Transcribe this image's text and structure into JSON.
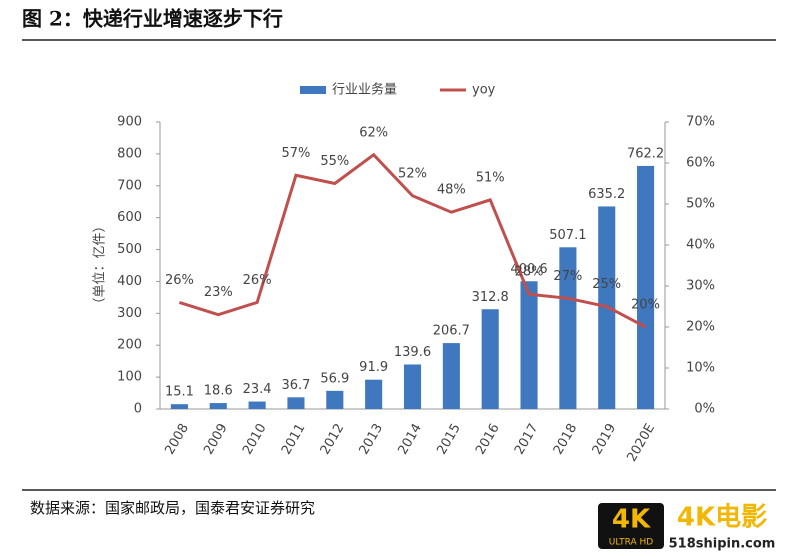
{
  "header": {
    "title": "图 2：快递行业增速逐步下行"
  },
  "chart_data": {
    "type": "bar",
    "categories": [
      "2008",
      "2009",
      "2010",
      "2011",
      "2012",
      "2013",
      "2014",
      "2015",
      "2016",
      "2017",
      "2018",
      "2019",
      "2020E"
    ],
    "series": [
      {
        "name": "行业业务量",
        "color": "#3f78bf",
        "type": "bar",
        "values": [
          15.1,
          18.6,
          23.4,
          36.7,
          56.9,
          91.9,
          139.6,
          206.7,
          312.8,
          400.6,
          507.1,
          635.2,
          762.2
        ]
      },
      {
        "name": "yoy",
        "color": "#c0504d",
        "type": "line",
        "axis": "y2",
        "values": [
          26,
          23,
          26,
          57,
          55,
          62,
          52,
          48,
          51,
          28,
          27,
          25,
          20
        ],
        "value_labels": [
          "26%",
          "23%",
          "26%",
          "57%",
          "55%",
          "62%",
          "52%",
          "48%",
          "51%",
          "28%",
          "27%",
          "25%",
          "20%"
        ]
      }
    ],
    "ylabel": "（单位：亿件）",
    "ylim": [
      0,
      900
    ],
    "yticks": [
      0,
      100,
      200,
      300,
      400,
      500,
      600,
      700,
      800,
      900
    ],
    "y2lim": [
      0,
      70
    ],
    "y2ticks": [
      {
        "value": 0,
        "label": "0%"
      },
      {
        "value": 10,
        "label": "10%"
      },
      {
        "value": 20,
        "label": "20%"
      },
      {
        "value": 30,
        "label": "30%"
      },
      {
        "value": 40,
        "label": "40%"
      },
      {
        "value": 50,
        "label": "50%"
      },
      {
        "value": 60,
        "label": "60%"
      },
      {
        "value": 70,
        "label": "70%"
      }
    ],
    "legend": "top"
  },
  "footer": {
    "source": "数据来源：国家邮政局，国泰君安证券研究"
  },
  "watermark": {
    "badge": "4K",
    "badge_sub": "ULTRA HD",
    "text": "4K电影",
    "url": "518shipin.com"
  }
}
